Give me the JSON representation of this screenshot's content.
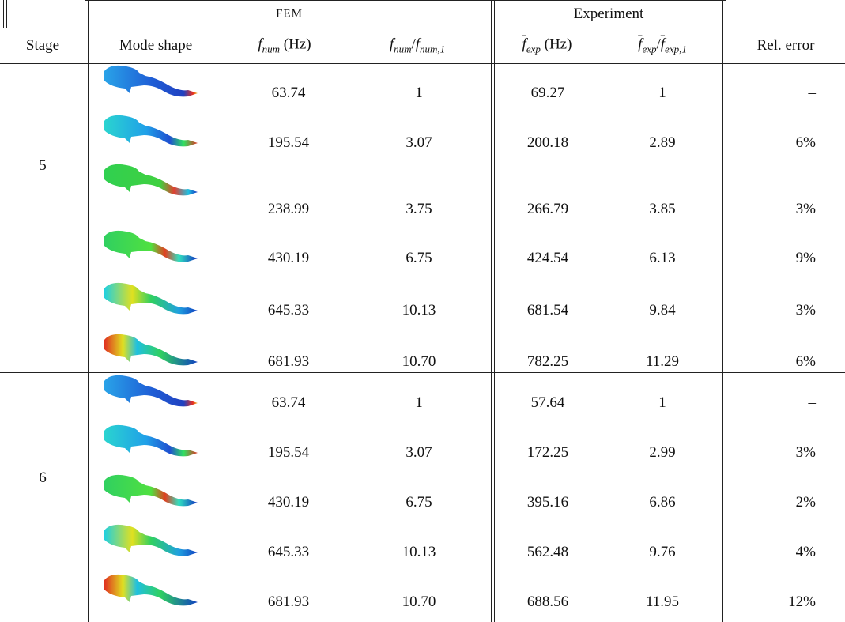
{
  "header": {
    "group_fem": "FEM",
    "group_experiment": "Experiment",
    "columns": {
      "stage": "Stage",
      "mode_shape": "Mode shape",
      "f_num": [
        "f",
        "num",
        " (Hz)"
      ],
      "f_num_ratio": [
        "f",
        "num",
        "/",
        "f",
        "num,1"
      ],
      "f_exp": [
        "f",
        "exp",
        " (Hz)"
      ],
      "f_exp_ratio": [
        "f",
        "exp",
        "/",
        "f",
        "exp,1"
      ],
      "rel_error": "Rel. error"
    }
  },
  "table": {
    "stages": [
      {
        "stage": "5",
        "rows": [
          [
            "63.74",
            "1",
            "69.27",
            "1",
            "–"
          ],
          [
            "195.54",
            "3.07",
            "200.18",
            "2.89",
            "6%"
          ],
          [
            "238.99",
            "3.75",
            "266.79",
            "3.85",
            "3%"
          ],
          [
            "430.19",
            "6.75",
            "424.54",
            "6.13",
            "9%"
          ],
          [
            "645.33",
            "10.13",
            "681.54",
            "9.84",
            "3%"
          ],
          [
            "681.93",
            "10.70",
            "782.25",
            "11.29",
            "6%"
          ]
        ]
      },
      {
        "stage": "6",
        "rows": [
          [
            "63.74",
            "1",
            "57.64",
            "1",
            "–"
          ],
          [
            "195.54",
            "3.07",
            "172.25",
            "2.99",
            "3%"
          ],
          [
            "430.19",
            "6.75",
            "395.16",
            "6.86",
            "2%"
          ],
          [
            "645.33",
            "10.13",
            "562.48",
            "9.76",
            "4%"
          ],
          [
            "681.93",
            "10.70",
            "688.56",
            "11.95",
            "12%"
          ]
        ]
      }
    ]
  }
}
